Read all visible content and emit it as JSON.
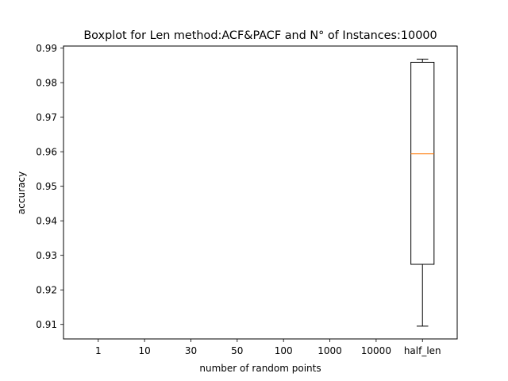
{
  "chart_data": {
    "type": "boxplot",
    "title": "Boxplot for Len method:ACF&PACF and N° of Instances:10000",
    "xlabel": "number of random points",
    "ylabel": "accuracy",
    "categories": [
      "1",
      "10",
      "30",
      "50",
      "100",
      "1000",
      "10000",
      "half_len"
    ],
    "yticks": [
      "0.91",
      "0.92",
      "0.93",
      "0.94",
      "0.95",
      "0.96",
      "0.97",
      "0.98",
      "0.99"
    ],
    "ylim": [
      0.9058,
      0.9906
    ],
    "grid": false,
    "boxes": [
      {
        "category": "half_len",
        "whisker_low": 0.9095,
        "q1": 0.9274,
        "median": 0.9594,
        "q3": 0.9859,
        "whisker_high": 0.9868
      }
    ],
    "colors": {
      "box": "#000000",
      "median": "#ff7f0e"
    }
  }
}
